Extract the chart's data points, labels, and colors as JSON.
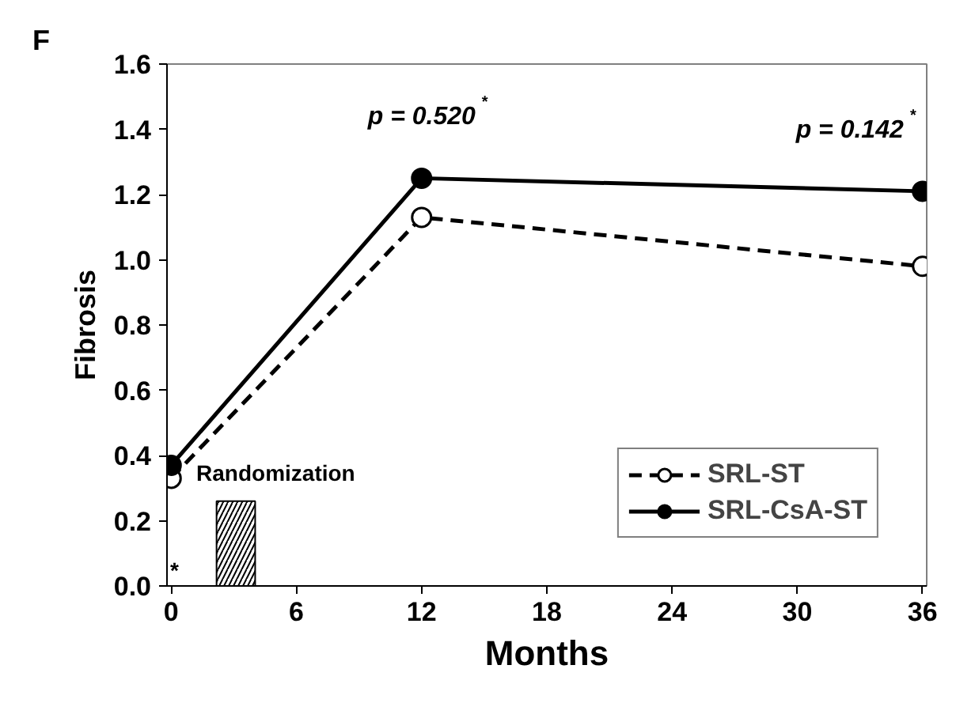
{
  "chart_data": {
    "type": "line",
    "title": "F",
    "xlabel": "Months",
    "ylabel": "Fibrosis",
    "x": [
      0,
      12,
      36
    ],
    "series": [
      {
        "name": "SRL-ST",
        "color": "#000000",
        "values": [
          0.33,
          1.13,
          0.98
        ],
        "marker": "circle",
        "line_style": "dashed"
      },
      {
        "name": "SRL-CsA-ST",
        "color": "#000000",
        "values": [
          0.37,
          1.25,
          1.21
        ],
        "marker": "circle",
        "line_style": "solid"
      },
      {
        "type": "bar",
        "x": [
          3.1
        ],
        "values": [
          0.26
        ],
        "color": "#ffffff"
      }
    ],
    "xlim": [
      -0.2,
      36.2
    ],
    "xticks": [
      0,
      6,
      12,
      18,
      24,
      30,
      36
    ],
    "ylim": [
      0,
      1.6
    ],
    "yticks": [
      {
        "value": 0,
        "label": "0.0"
      },
      0.2,
      0.4,
      0.6,
      0.8,
      {
        "value": 1,
        "label": "1.0"
      },
      1.2,
      1.4,
      1.6
    ],
    "annotations": [
      {
        "text": "Randomization",
        "x": 3.1,
        "y": 0.26
      },
      {
        "text": "p = 0.520$^{*}$",
        "x": 12,
        "y": 1.25
      },
      {
        "text": "p = 0.142$^{*}$",
        "x": 36,
        "y": 1.21
      },
      "*"
    ],
    "legend": "bottom right",
    "grid": false
  }
}
